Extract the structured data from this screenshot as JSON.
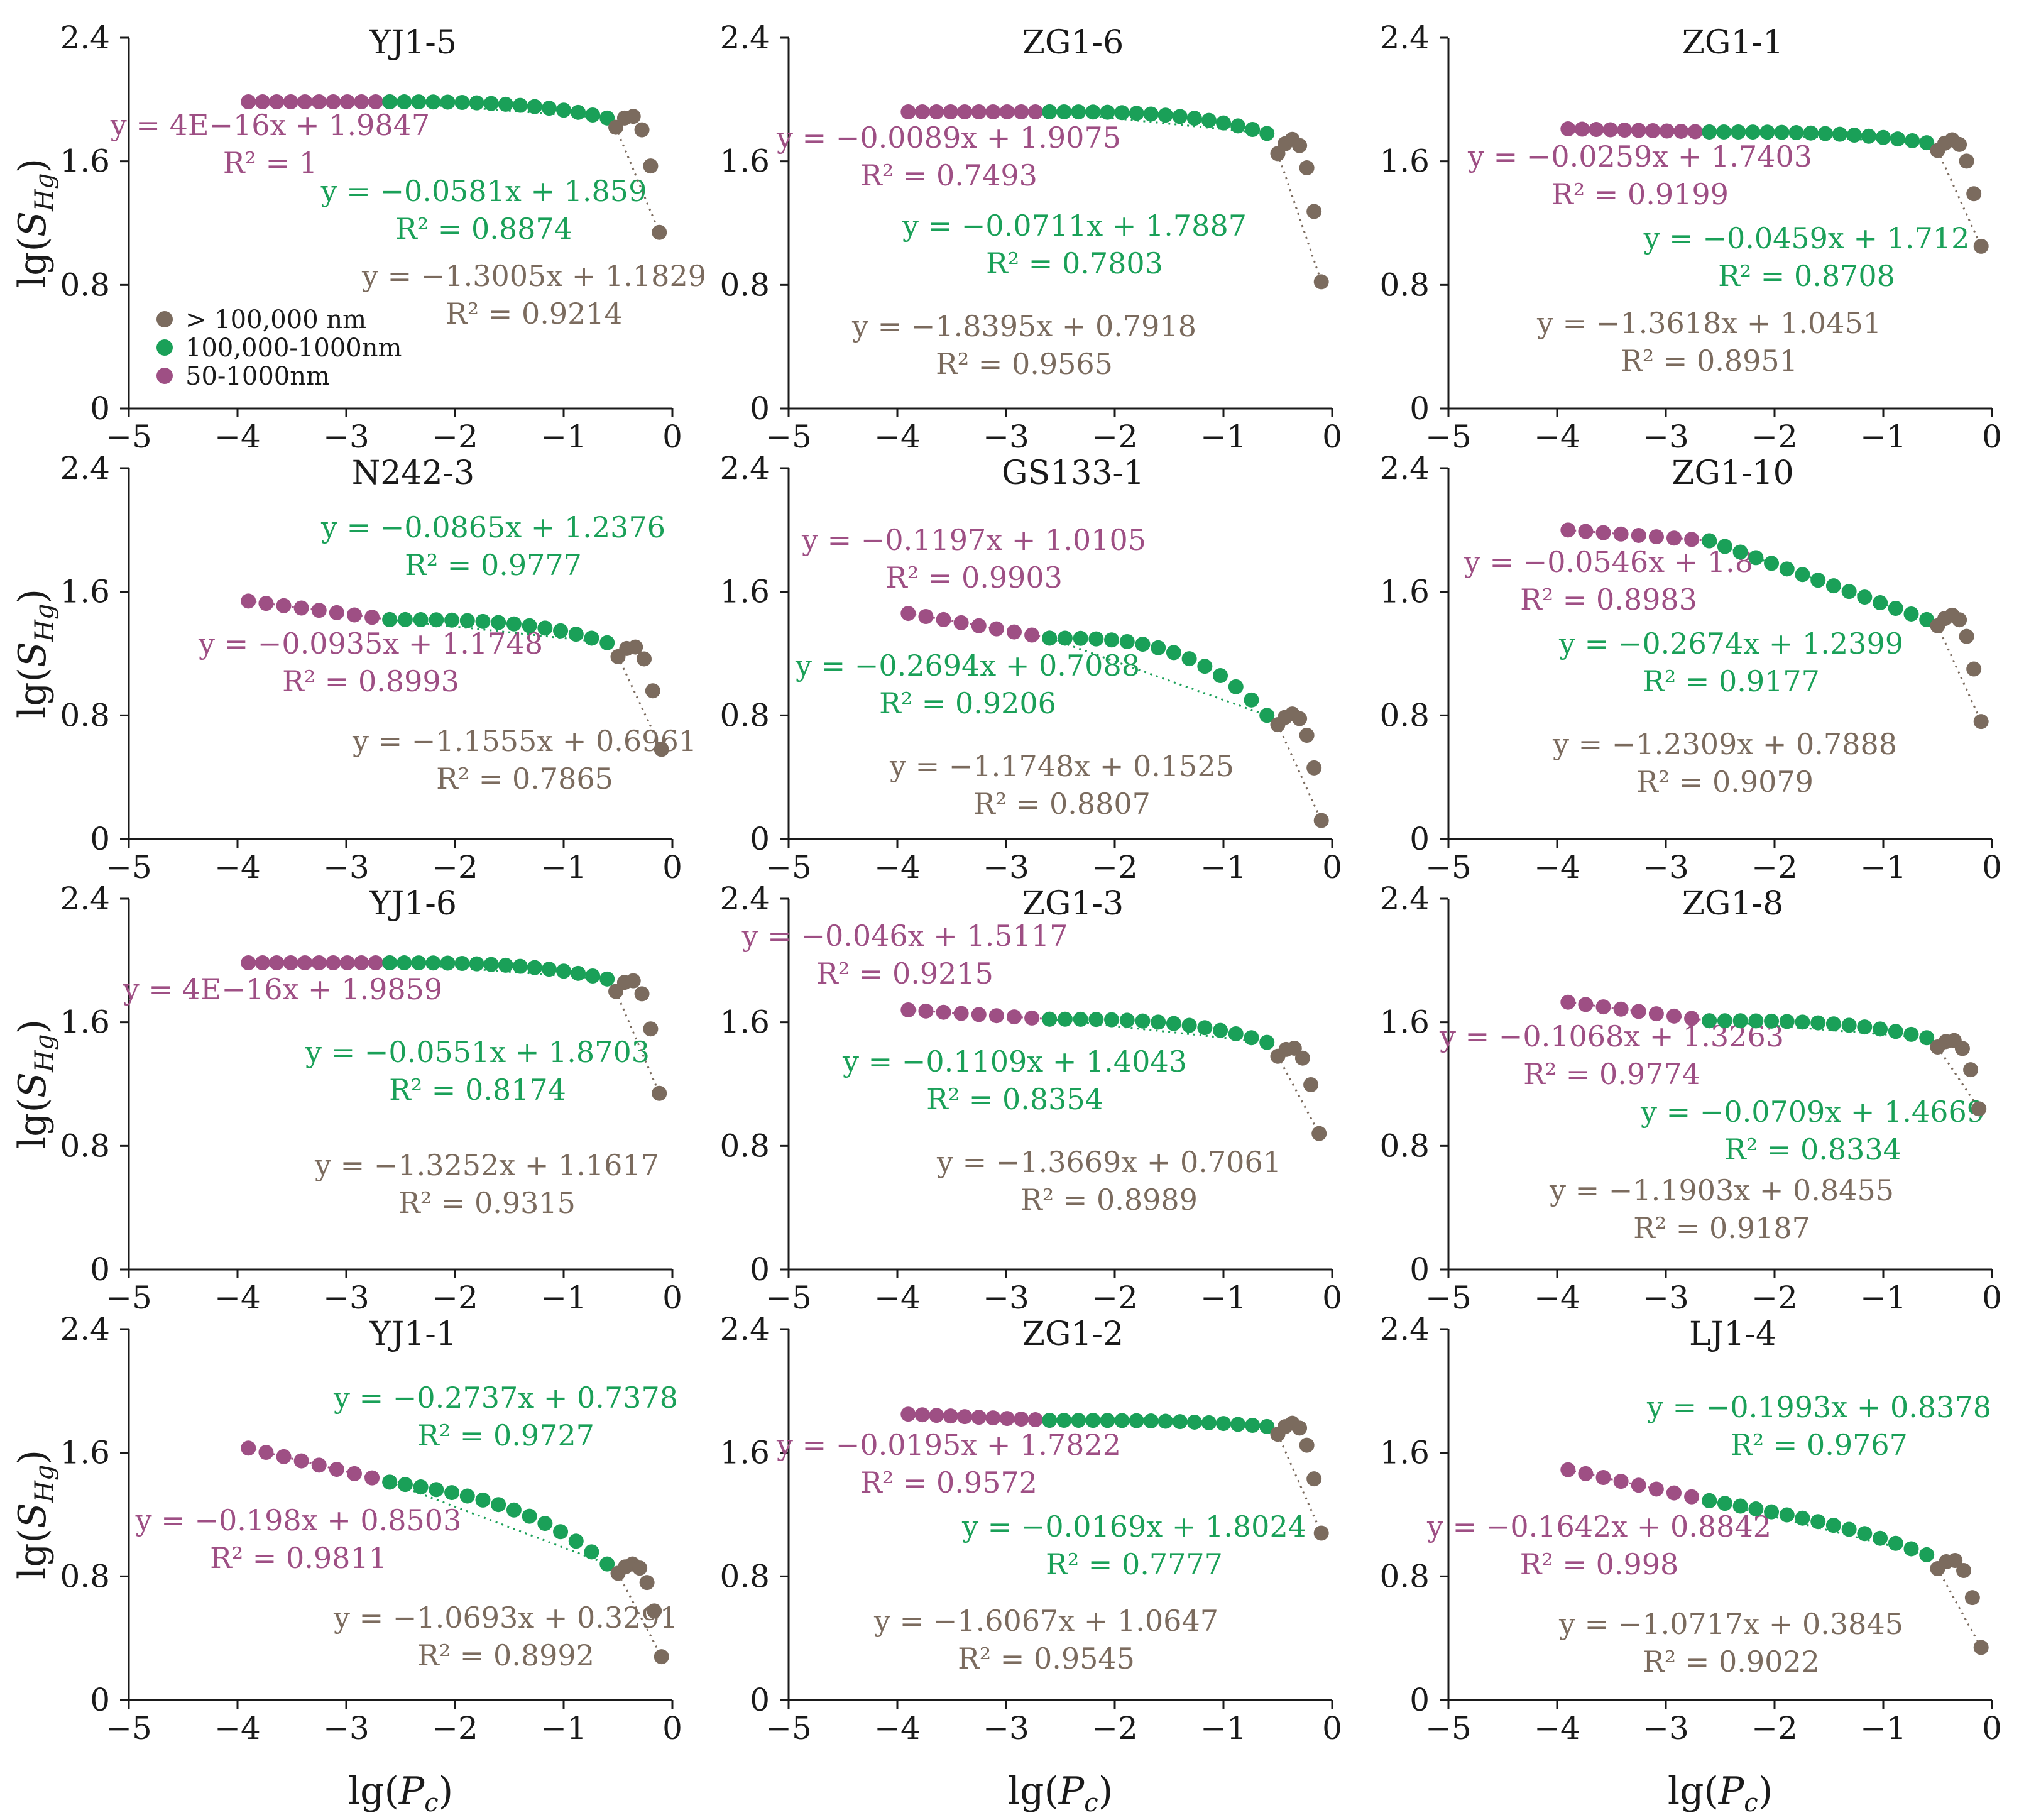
{
  "colors": {
    "small": "#9e4f84",
    "medium": "#1aa058",
    "large": "#7b6b5e"
  },
  "labels": {
    "x_axis": "lg(P_c)",
    "y_axis": "lg(S_Hg)"
  },
  "legend": [
    {
      "key": "large",
      "label": "> 100,000 nm"
    },
    {
      "key": "medium",
      "label": "100,000-1000nm"
    },
    {
      "key": "small",
      "label": "50-1000nm"
    }
  ],
  "chart_data": {
    "type": "scatter",
    "xlabel": "lg(P_c)",
    "ylabel": "lg(S_Hg)",
    "xlim": [
      -5,
      0
    ],
    "ylim": [
      0,
      2.4
    ],
    "xticks": [
      "−5",
      "−4",
      "−3",
      "−2",
      "−1",
      "0"
    ],
    "yticks": [
      "0",
      "0.8",
      "1.6",
      "2.4"
    ],
    "panels": [
      {
        "title": "YJ1-5",
        "segments": [
          {
            "key": "small",
            "x0": -3.9,
            "x1": -2.6,
            "n": 11,
            "y0": 1.985,
            "y1": 1.985,
            "curve": 0.0,
            "eq": "y = 4E−16x + 1.9847",
            "r2": "R² = 1"
          },
          {
            "key": "medium",
            "x0": -2.6,
            "x1": -0.6,
            "n": 16,
            "y0": 1.985,
            "y1": 1.88,
            "curve": 1.0,
            "eq": "y = −0.0581x + 1.859",
            "r2": "R² = 0.8874"
          },
          {
            "key": "large",
            "x0": -0.52,
            "x1": -0.12,
            "n": 6,
            "y0": 1.82,
            "y1": 1.14,
            "curve": 1.5,
            "eq": "y = −1.3005x + 1.1829",
            "r2": "R² = 0.9214"
          }
        ]
      },
      {
        "title": "ZG1-6",
        "segments": [
          {
            "key": "small",
            "x0": -3.9,
            "x1": -2.6,
            "n": 11,
            "y0": 1.92,
            "y1": 1.92,
            "curve": 0.0,
            "eq": "y = −0.0089x + 1.9075",
            "r2": "R² = 0.7493"
          },
          {
            "key": "medium",
            "x0": -2.6,
            "x1": -0.6,
            "n": 16,
            "y0": 1.92,
            "y1": 1.78,
            "curve": 1.0,
            "eq": "y = −0.0711x + 1.7887",
            "r2": "R² = 0.7803"
          },
          {
            "key": "large",
            "x0": -0.5,
            "x1": -0.1,
            "n": 7,
            "y0": 1.65,
            "y1": 0.82,
            "curve": 1.5,
            "eq": "y = −1.8395x + 0.7918",
            "r2": "R² = 0.9565"
          }
        ]
      },
      {
        "title": "ZG1-1",
        "segments": [
          {
            "key": "small",
            "x0": -3.9,
            "x1": -2.6,
            "n": 11,
            "y0": 1.81,
            "y1": 1.79,
            "curve": 0.0,
            "eq": "y = −0.0259x + 1.7403",
            "r2": "R² = 0.9199"
          },
          {
            "key": "medium",
            "x0": -2.6,
            "x1": -0.6,
            "n": 16,
            "y0": 1.79,
            "y1": 1.72,
            "curve": 1.0,
            "eq": "y = −0.0459x + 1.712",
            "r2": "R² = 0.8708"
          },
          {
            "key": "large",
            "x0": -0.5,
            "x1": -0.1,
            "n": 7,
            "y0": 1.67,
            "y1": 1.05,
            "curve": 1.5,
            "eq": "y = −1.3618x + 1.0451",
            "r2": "R² = 0.8951"
          }
        ]
      },
      {
        "title": "N242-3",
        "segments": [
          {
            "key": "small",
            "x0": -3.9,
            "x1": -2.6,
            "n": 9,
            "y0": 1.54,
            "y1": 1.42,
            "curve": 0.0,
            "eq": "y = −0.0935x + 1.1748",
            "r2": "R² = 0.8993"
          },
          {
            "key": "medium",
            "x0": -2.6,
            "x1": -0.6,
            "n": 15,
            "y0": 1.42,
            "y1": 1.27,
            "curve": 1.0,
            "eq": "y = −0.0865x + 1.2376",
            "r2": "R² = 0.9777"
          },
          {
            "key": "large",
            "x0": -0.5,
            "x1": -0.1,
            "n": 6,
            "y0": 1.18,
            "y1": 0.58,
            "curve": 1.5,
            "eq": "y = −1.1555x + 0.6961",
            "r2": "R² = 0.7865"
          }
        ]
      },
      {
        "title": "GS133-1",
        "segments": [
          {
            "key": "small",
            "x0": -3.9,
            "x1": -2.6,
            "n": 9,
            "y0": 1.46,
            "y1": 1.3,
            "curve": 0.0,
            "eq": "y = −0.1197x + 1.0105",
            "r2": "R² = 0.9903"
          },
          {
            "key": "medium",
            "x0": -2.6,
            "x1": -0.6,
            "n": 15,
            "y0": 1.3,
            "y1": 0.8,
            "curve": 1.0,
            "eq": "y = −0.2694x + 0.7088",
            "r2": "R² = 0.9206"
          },
          {
            "key": "large",
            "x0": -0.5,
            "x1": -0.1,
            "n": 7,
            "y0": 0.74,
            "y1": 0.12,
            "curve": 1.5,
            "eq": "y = −1.1748x + 0.1525",
            "r2": "R² = 0.8807"
          }
        ]
      },
      {
        "title": "ZG1-10",
        "segments": [
          {
            "key": "small",
            "x0": -3.9,
            "x1": -2.6,
            "n": 9,
            "y0": 2.0,
            "y1": 1.93,
            "curve": 0.0,
            "eq": "y = −0.0546x + 1.8",
            "r2": "R² = 0.8983"
          },
          {
            "key": "medium",
            "x0": -2.6,
            "x1": -0.6,
            "n": 15,
            "y0": 1.93,
            "y1": 1.42,
            "curve": 0.0,
            "eq": "y = −0.2674x + 1.2399",
            "r2": "R² = 0.9177"
          },
          {
            "key": "large",
            "x0": -0.5,
            "x1": -0.1,
            "n": 7,
            "y0": 1.38,
            "y1": 0.76,
            "curve": 1.5,
            "eq": "y = −1.2309x + 0.7888",
            "r2": "R² = 0.9079"
          }
        ]
      },
      {
        "title": "YJ1-6",
        "segments": [
          {
            "key": "small",
            "x0": -3.9,
            "x1": -2.6,
            "n": 11,
            "y0": 1.985,
            "y1": 1.985,
            "curve": 0.0,
            "eq": "y = 4E−16x + 1.9859",
            "r2": ""
          },
          {
            "key": "medium",
            "x0": -2.6,
            "x1": -0.6,
            "n": 16,
            "y0": 1.985,
            "y1": 1.88,
            "curve": 1.0,
            "eq": "y = −0.0551x + 1.8703",
            "r2": "R² = 0.8174"
          },
          {
            "key": "large",
            "x0": -0.52,
            "x1": -0.12,
            "n": 6,
            "y0": 1.8,
            "y1": 1.14,
            "curve": 1.5,
            "eq": "y = −1.3252x + 1.1617",
            "r2": "R² = 0.9315"
          }
        ]
      },
      {
        "title": "ZG1-3",
        "segments": [
          {
            "key": "small",
            "x0": -3.9,
            "x1": -2.6,
            "n": 9,
            "y0": 1.68,
            "y1": 1.62,
            "curve": 0.0,
            "eq": "y = −0.046x + 1.5117",
            "r2": "R² = 0.9215"
          },
          {
            "key": "medium",
            "x0": -2.6,
            "x1": -0.6,
            "n": 15,
            "y0": 1.62,
            "y1": 1.47,
            "curve": 1.0,
            "eq": "y = −0.1109x + 1.4043",
            "r2": "R² = 0.8354"
          },
          {
            "key": "large",
            "x0": -0.5,
            "x1": -0.12,
            "n": 6,
            "y0": 1.38,
            "y1": 0.88,
            "curve": 1.5,
            "eq": "y = −1.3669x + 0.7061",
            "r2": "R² = 0.8989"
          }
        ]
      },
      {
        "title": "ZG1-8",
        "segments": [
          {
            "key": "small",
            "x0": -3.9,
            "x1": -2.6,
            "n": 9,
            "y0": 1.73,
            "y1": 1.61,
            "curve": 0.0,
            "eq": "y = −0.1068x + 1.3263",
            "r2": "R² = 0.9774"
          },
          {
            "key": "medium",
            "x0": -2.6,
            "x1": -0.6,
            "n": 15,
            "y0": 1.61,
            "y1": 1.5,
            "curve": 1.0,
            "eq": "y = −0.0709x + 1.4669",
            "r2": "R² = 0.8334"
          },
          {
            "key": "large",
            "x0": -0.5,
            "x1": -0.12,
            "n": 6,
            "y0": 1.44,
            "y1": 1.04,
            "curve": 1.5,
            "eq": "y = −1.1903x + 0.8455",
            "r2": "R² = 0.9187"
          }
        ]
      },
      {
        "title": "YJ1-1",
        "segments": [
          {
            "key": "small",
            "x0": -3.9,
            "x1": -2.6,
            "n": 9,
            "y0": 1.63,
            "y1": 1.41,
            "curve": 0.0,
            "eq": "y = −0.198x + 0.8503",
            "r2": "R² = 0.9811"
          },
          {
            "key": "medium",
            "x0": -2.6,
            "x1": -0.6,
            "n": 15,
            "y0": 1.41,
            "y1": 0.88,
            "curve": 0.6,
            "eq": "y = −0.2737x + 0.7378",
            "r2": "R² = 0.9727"
          },
          {
            "key": "large",
            "x0": -0.5,
            "x1": -0.1,
            "n": 7,
            "y0": 0.82,
            "y1": 0.28,
            "curve": 1.5,
            "eq": "y = −1.0693x + 0.3291",
            "r2": "R² = 0.8992"
          }
        ]
      },
      {
        "title": "ZG1-2",
        "segments": [
          {
            "key": "small",
            "x0": -3.9,
            "x1": -2.6,
            "n": 11,
            "y0": 1.85,
            "y1": 1.81,
            "curve": 0.0,
            "eq": "y = −0.0195x + 1.7822",
            "r2": "R² = 0.9572"
          },
          {
            "key": "medium",
            "x0": -2.6,
            "x1": -0.6,
            "n": 16,
            "y0": 1.81,
            "y1": 1.77,
            "curve": 1.0,
            "eq": "y = −0.0169x + 1.8024",
            "r2": "R² = 0.7777"
          },
          {
            "key": "large",
            "x0": -0.5,
            "x1": -0.1,
            "n": 7,
            "y0": 1.72,
            "y1": 1.08,
            "curve": 1.5,
            "eq": "y = −1.6067x + 1.0647",
            "r2": "R² = 0.9545"
          }
        ]
      },
      {
        "title": "LJ1-4",
        "segments": [
          {
            "key": "small",
            "x0": -3.9,
            "x1": -2.6,
            "n": 9,
            "y0": 1.49,
            "y1": 1.29,
            "curve": 0.0,
            "eq": "y = −0.1642x + 0.8842",
            "r2": "R² = 0.998"
          },
          {
            "key": "medium",
            "x0": -2.6,
            "x1": -0.6,
            "n": 15,
            "y0": 1.29,
            "y1": 0.94,
            "curve": 0.3,
            "eq": "y = −0.1993x + 0.8378",
            "r2": "R² = 0.9767"
          },
          {
            "key": "large",
            "x0": -0.5,
            "x1": -0.1,
            "n": 6,
            "y0": 0.85,
            "y1": 0.34,
            "curve": 1.5,
            "eq": "y = −1.0717x + 0.3845",
            "r2": "R² = 0.9022"
          }
        ]
      }
    ]
  }
}
